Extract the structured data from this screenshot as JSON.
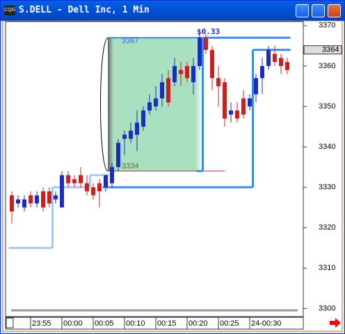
{
  "window_title": "S.DELL - Dell Inc, 1 Min",
  "chart_data": {
    "type": "candlestick",
    "categories": [
      null,
      null,
      null,
      "23:55",
      null,
      null,
      null,
      null,
      "00:00",
      null,
      null,
      null,
      null,
      "00:05",
      null,
      null,
      null,
      null,
      "00:10",
      null,
      null,
      null,
      null,
      "00:15",
      null,
      null,
      null,
      null,
      "00:20",
      null,
      null,
      null,
      null,
      "00:25",
      null,
      null,
      null,
      null,
      "24-00:30",
      null,
      null,
      null,
      null,
      null,
      null
    ],
    "open": [
      3328,
      3326,
      3325,
      3328,
      3326,
      3329,
      3329,
      3327,
      3325,
      3333,
      3332,
      3333,
      3331,
      3330,
      3331,
      3330,
      3331,
      3335,
      3342,
      3342,
      3343,
      3345,
      3349,
      3350,
      3352,
      3357,
      3356,
      3359,
      3360,
      3356,
      3360,
      3367,
      3364,
      3357,
      3356,
      3348,
      3349,
      3352,
      3350,
      3353,
      3357,
      3360,
      3363,
      3362,
      3361
    ],
    "high": [
      3329,
      3328,
      3328,
      3329,
      3329,
      3330,
      3330,
      3329,
      3334,
      3334,
      3333,
      3335,
      3333,
      3331,
      3332,
      3333,
      3336,
      3342,
      3344,
      3346,
      3349,
      3350,
      3353,
      3355,
      3358,
      3359,
      3362,
      3361,
      3361,
      3362,
      3368,
      3368,
      3365,
      3360,
      3357,
      3351,
      3351,
      3354,
      3353,
      3358,
      3362,
      3365,
      3365,
      3363,
      3362
    ],
    "low": [
      3321,
      3325,
      3324,
      3325,
      3325,
      3324,
      3325,
      3326,
      3325,
      3330,
      3330,
      3330,
      3328,
      3327,
      3325,
      3329,
      3330,
      3334,
      3338,
      3341,
      3339,
      3344,
      3348,
      3349,
      3350,
      3350,
      3355,
      3355,
      3356,
      3353,
      3359,
      3363,
      3354,
      3350,
      3345,
      3346,
      3346,
      3347,
      3349,
      3351,
      3353,
      3359,
      3360,
      3358,
      3358
    ],
    "close": [
      3324,
      3327,
      3327,
      3326,
      3328,
      3325,
      3326,
      3328,
      3333,
      3331,
      3331,
      3331,
      3329,
      3328,
      3329,
      3333,
      3335,
      3341,
      3343,
      3344,
      3346,
      3349,
      3351,
      3352,
      3356,
      3351,
      3360,
      3358,
      3357,
      3360,
      3367,
      3364,
      3357,
      3355,
      3347,
      3349,
      3347,
      3348,
      3352,
      3357,
      3360,
      3364,
      3361,
      3360,
      3359
    ],
    "up_color": "#1c2bc4",
    "down_color": "#cc2020",
    "lines": [
      {
        "color": "#a8c8f0",
        "values": [
          3315,
          3315,
          3315,
          3315,
          3315,
          3315,
          3315,
          3330,
          3330,
          3330,
          3330,
          3330,
          3330,
          3333,
          3333,
          3333,
          null,
          null,
          null,
          null,
          null,
          null,
          null,
          null,
          null,
          null,
          null,
          null,
          null,
          null,
          null,
          null,
          null,
          null,
          null,
          null,
          null,
          null,
          null,
          null,
          null,
          null,
          null,
          null,
          null
        ]
      },
      {
        "color": "#3a8af0",
        "values": [
          null,
          null,
          null,
          null,
          null,
          null,
          null,
          null,
          null,
          null,
          null,
          null,
          null,
          null,
          null,
          3330,
          3330,
          3330,
          3330,
          3330,
          3330,
          3330,
          3330,
          3330,
          3330,
          3330,
          3330,
          3330,
          3330,
          3330,
          3330,
          3330,
          3330,
          3330,
          3330,
          3330,
          3330,
          3330,
          3330,
          3364,
          3364,
          3364,
          3364,
          3364,
          3364
        ]
      },
      {
        "color": "#3a8af0",
        "values": [
          null,
          null,
          null,
          null,
          null,
          null,
          null,
          null,
          null,
          null,
          null,
          null,
          null,
          null,
          null,
          null,
          null,
          null,
          null,
          null,
          null,
          null,
          null,
          null,
          null,
          null,
          null,
          null,
          null,
          null,
          3334,
          3367,
          3367,
          3367,
          3367,
          3367,
          3367,
          3367,
          3367,
          3367,
          3367,
          3367,
          3367,
          3367,
          3367
        ]
      }
    ],
    "range_high": 3367,
    "range_low": 3334,
    "annotation": "$0.33",
    "last_price": 3364,
    "ylim": [
      3298,
      3371
    ],
    "yticks": [
      3300,
      3310,
      3320,
      3330,
      3340,
      3350,
      3360,
      3370
    ]
  }
}
